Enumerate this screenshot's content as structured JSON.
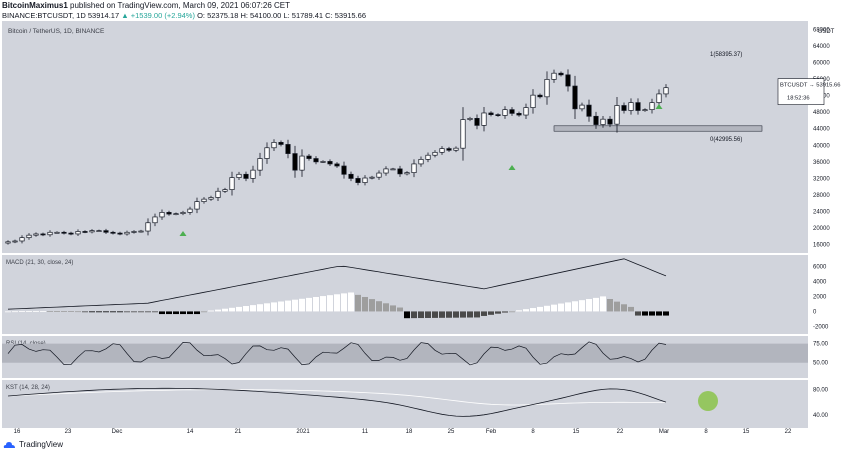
{
  "header": {
    "author": "BitcoinMaximus1",
    "published_text": "published on TradingView.com, March 09, 2021 06:07:26 CET",
    "ticker_line": "BINANCE:BTCUSDT, 1D",
    "price": "53914.17",
    "change": "▲ +1539.00 (+2.94%)",
    "o": "O: 52375.18",
    "h": "H: 54100.00",
    "l": "L: 51789.41",
    "c": "C: 53915.66"
  },
  "footer": {
    "brand": "TradingView"
  },
  "colors": {
    "pane_bg": "#d1d4dc",
    "band": "#b2b5be",
    "up_candle": "#ffffff",
    "down_candle": "#000000",
    "signal_arrow": "#4caf50",
    "highlight_circle": "#8bc34a"
  },
  "chart_data": [
    {
      "type": "candlestick",
      "title": "Bitcoin / TetherUS, 1D, BINANCE",
      "ylabel": "USDT",
      "y_ticks": [
        16000,
        20000,
        24000,
        28000,
        32000,
        36000,
        40000,
        44000,
        48000,
        52000,
        56000,
        60000,
        64000,
        68000
      ],
      "ylim": [
        14000,
        70000
      ],
      "x_tick_labels": [
        "16",
        "23",
        "Dec",
        "14",
        "21",
        "2021",
        "11",
        "18",
        "25",
        "Feb",
        "8",
        "15",
        "22",
        "Mar",
        "8",
        "15",
        "22"
      ],
      "price_label": "BTCUSDT",
      "last_price": "53915.66",
      "countdown": "18:52:36",
      "annotations": [
        {
          "label": "1(58395.37)",
          "value": 58395.37
        },
        {
          "label": "0(42995.56)",
          "value": 42995.56
        }
      ],
      "support_zone": [
        43400,
        44700
      ],
      "approx_closes": [
        16700,
        16900,
        17700,
        18300,
        18600,
        18400,
        19000,
        19000,
        18800,
        18600,
        19200,
        19100,
        19400,
        19400,
        19000,
        18800,
        18600,
        19000,
        19200,
        19300,
        21300,
        22700,
        23800,
        23400,
        23500,
        23800,
        24600,
        26400,
        27000,
        27400,
        28900,
        29300,
        32200,
        33000,
        32000,
        34000,
        36800,
        39400,
        40700,
        40200,
        38000,
        34000,
        37400,
        36800,
        36000,
        36100,
        35500,
        35000,
        33000,
        32000,
        31000,
        32100,
        32300,
        33300,
        34300,
        34300,
        33100,
        33400,
        35500,
        36600,
        37600,
        38300,
        39200,
        38800,
        39300,
        46200,
        46500,
        44800,
        47800,
        47400,
        47200,
        48600,
        47700,
        47300,
        49100,
        52100,
        51700,
        55900,
        57400,
        57000,
        54300,
        48800,
        49700,
        47000,
        45000,
        46300,
        45100,
        49600,
        48400,
        50300,
        48400,
        48600,
        50300,
        52400,
        53900
      ],
      "signals": [
        "Dec 16",
        "Feb 2",
        "Mar 7"
      ]
    },
    {
      "type": "area",
      "title": "MACD (21, 30, close, 24)",
      "y_ticks": [
        -2000,
        0,
        2000,
        4000,
        6000
      ],
      "ylim": [
        -3000,
        7500
      ],
      "approx_macd_line_peaks": {
        "Jan 10": 6000,
        "Feb 21": 7000,
        "Mar 8": 4800
      }
    },
    {
      "type": "line",
      "title": "RSI (14, close)",
      "y_ticks": [
        50,
        75
      ],
      "bands": [
        50,
        75
      ]
    },
    {
      "type": "line",
      "title": "KST (14, 28, 24)",
      "y_ticks": [
        40,
        80
      ],
      "highlight": "Mar 8"
    }
  ]
}
